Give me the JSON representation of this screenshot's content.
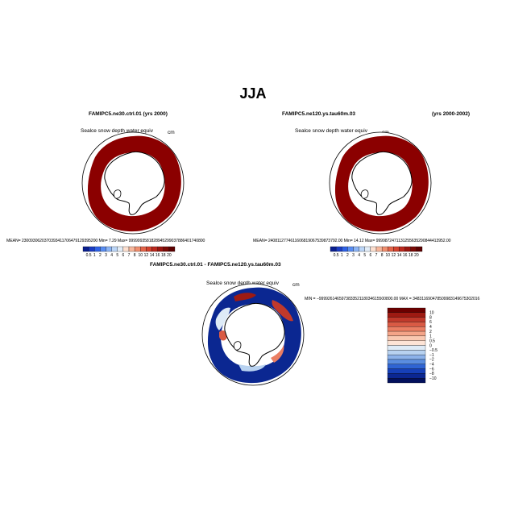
{
  "page": {
    "title": "JJA"
  },
  "panels": [
    {
      "id": "left",
      "title": "FAMIPC5.ne30.ctrl.01 (yrs 2000)",
      "variable": "Sealce snow depth water equiv",
      "units": "cm",
      "stats": "MEAN= 2300930620370393411706479129395200   Min=    7.29   Max=  9999993581828945299037886401740800"
    },
    {
      "id": "right",
      "title_case": "FAMIPC5.ne120.ys.tau60m.03",
      "title_years": "(yrs 2000-2002)",
      "variable": "Sealce snow depth water equiv",
      "units": "cm",
      "stats": "MEAN= 2408112774611606819067539873792.00   Min=   14.12   Max=  9999872471131255635290844413952.00"
    },
    {
      "id": "diff",
      "title": "FAMIPC5.ne30.ctrl.01 - FAMIPC5.ne120.ys.tau60m.03",
      "variable": "Sealce snow depth water equiv",
      "units": "cm",
      "stats": "MIN = −999926146597383352118034615500800.00   MAX =  348311690478509983149675302016"
    }
  ],
  "colorbar_abs": {
    "labels": [
      "0.5",
      "1",
      "2",
      "3",
      "4",
      "5",
      "6",
      "7",
      "8",
      "10",
      "12",
      "14",
      "16",
      "18",
      "20"
    ],
    "colors": [
      "#0a1f8f",
      "#1b3cc4",
      "#2f62e6",
      "#5a8ef2",
      "#8db5f5",
      "#bcd6f7",
      "#e3edf7",
      "#fde0d0",
      "#f7b79c",
      "#f08f6f",
      "#e3654a",
      "#d4432f",
      "#bb2a1f",
      "#9a1610",
      "#7a0a05",
      "#5c0000"
    ]
  },
  "colorbar_diff": {
    "labels": [
      "10",
      "8",
      "6",
      "4",
      "2",
      "1",
      "0.5",
      "0",
      "−0.5",
      "−1",
      "−2",
      "−4",
      "−6",
      "−8",
      "−10"
    ],
    "colors": [
      "#6b0000",
      "#9e1a12",
      "#c0392b",
      "#d95a44",
      "#ea7e63",
      "#f4a488",
      "#f9c8b1",
      "#fde4d6",
      "#deebf7",
      "#b8d2f0",
      "#8cb2ea",
      "#5a8de0",
      "#2f64d3",
      "#1640b8",
      "#0b2791",
      "#02105c"
    ]
  },
  "colors": {
    "snow_red": "#8b0000",
    "land_white": "#ffffff",
    "coast_black": "#000000"
  }
}
